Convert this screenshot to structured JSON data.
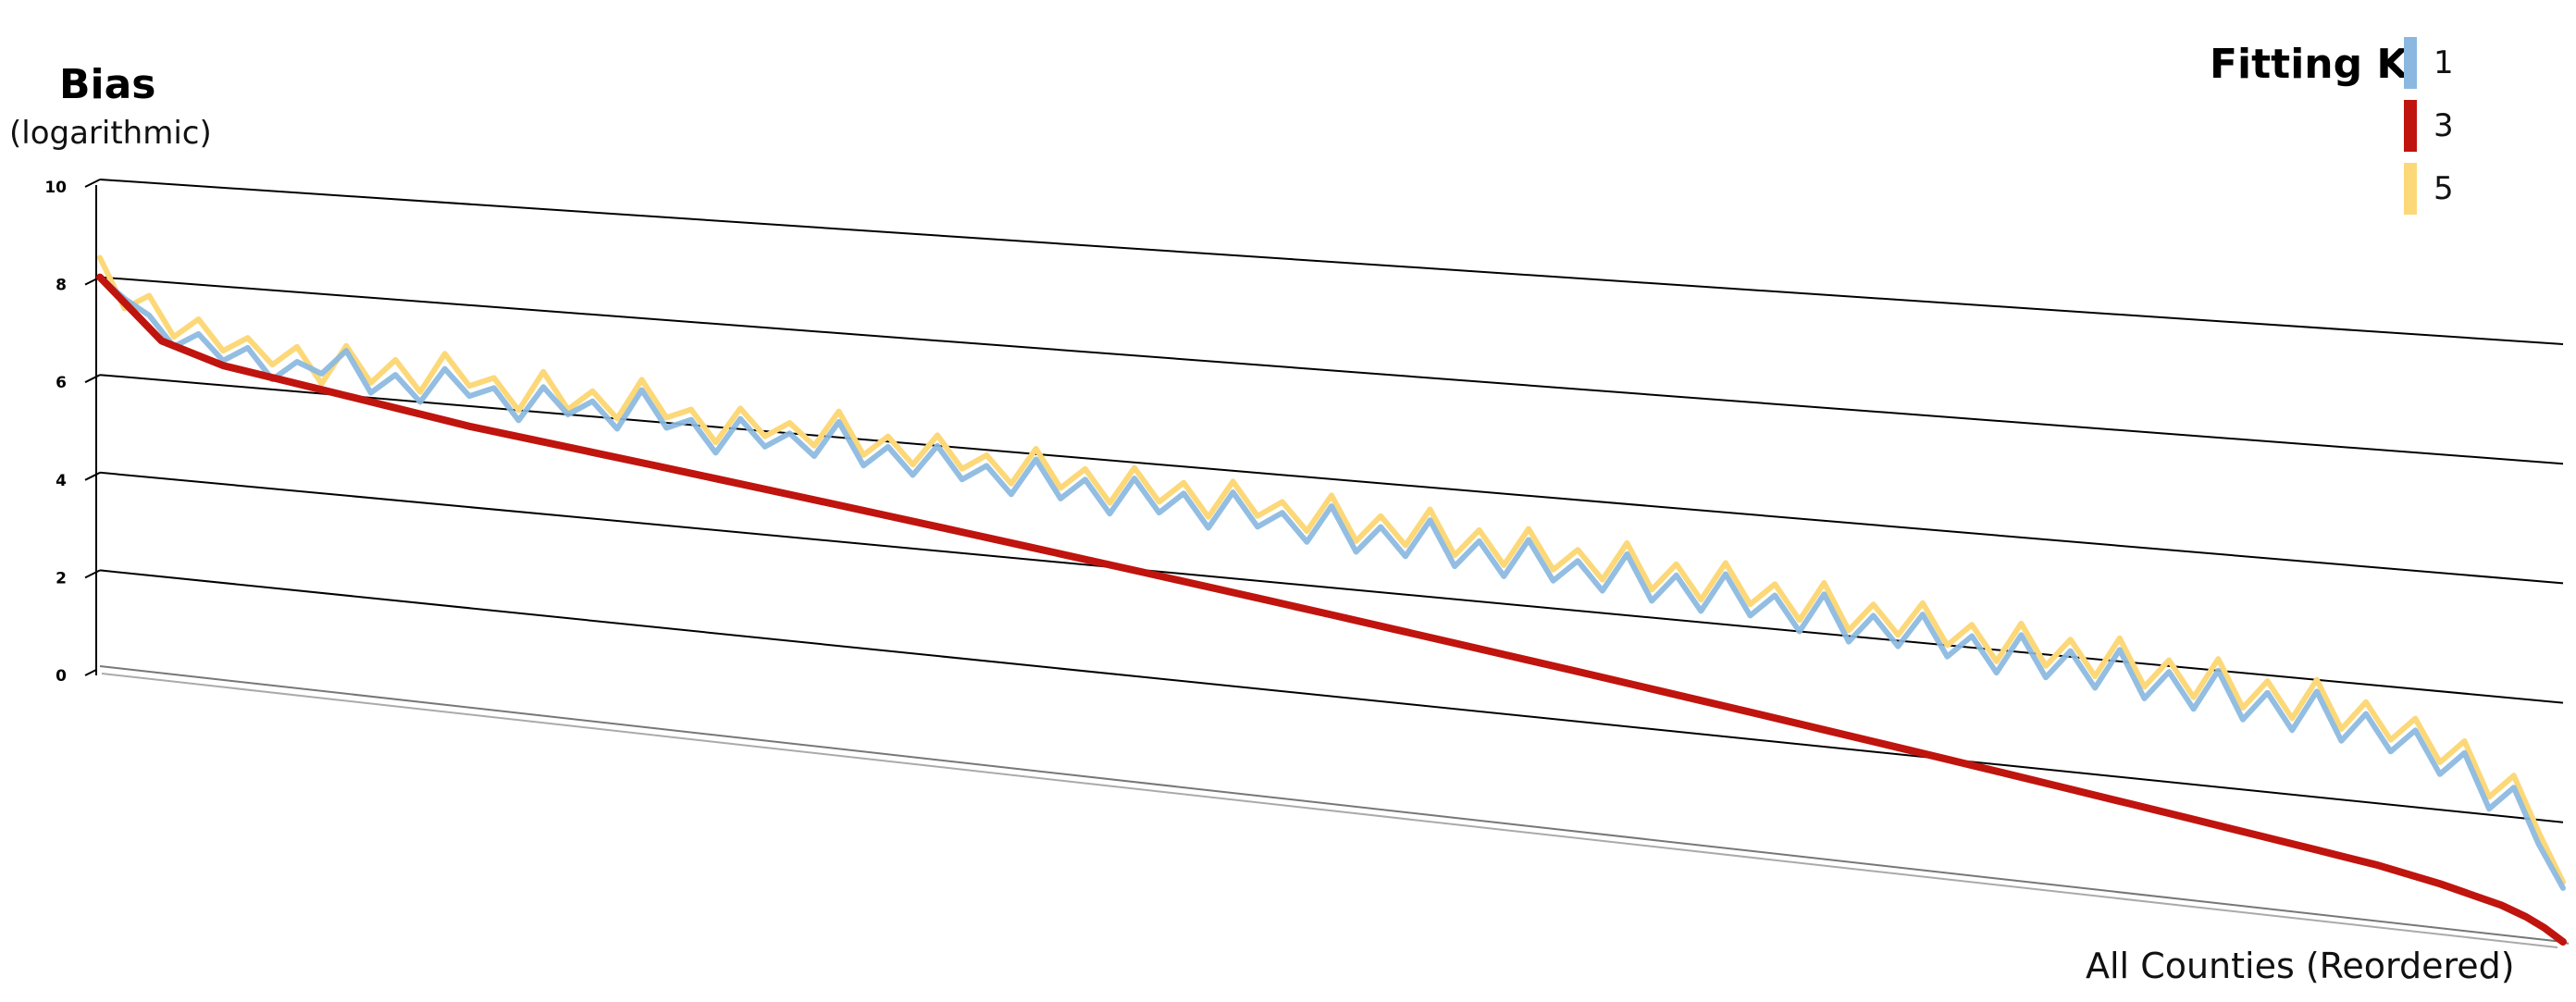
{
  "chart_data": {
    "type": "line",
    "title": "",
    "ylabel": "Bias",
    "ylabel_sub": "(logarithmic)",
    "xlabel": "All Counties (Reordered)",
    "y_ticks": [
      "0",
      "2",
      "4",
      "6",
      "8",
      "10"
    ],
    "ylim": [
      0,
      10
    ],
    "grid": true,
    "legend": {
      "title": "Fitting K",
      "placement": "top-right",
      "items": [
        {
          "label": "1",
          "color": "#8ab8e0"
        },
        {
          "label": "3",
          "color": "#c0140e"
        },
        {
          "label": "5",
          "color": "#fcd879"
        }
      ]
    },
    "series": [
      {
        "name": "1",
        "color": "#8ab8e0",
        "x": [
          0,
          20,
          40,
          60,
          80,
          100,
          120,
          140,
          160,
          180,
          200,
          220,
          240,
          260,
          280,
          300,
          320,
          340,
          360,
          380,
          400,
          420,
          440,
          460,
          480,
          500,
          520,
          540,
          560,
          580,
          600,
          620,
          640,
          660,
          680,
          700,
          720,
          740,
          760,
          780,
          800,
          820,
          840,
          860,
          880,
          900,
          920,
          940,
          960,
          980,
          1000,
          1020,
          1040,
          1060,
          1080,
          1100,
          1120,
          1140,
          1160,
          1180,
          1200,
          1220,
          1240,
          1260,
          1280,
          1300,
          1320,
          1340,
          1360,
          1380,
          1400,
          1420,
          1440,
          1460,
          1480,
          1500,
          1520,
          1540,
          1560,
          1580,
          1600,
          1620,
          1640,
          1660,
          1680,
          1700,
          1720,
          1740,
          1760,
          1780,
          1800,
          1820,
          1840,
          1860,
          1880,
          1900,
          1920,
          1940,
          1960,
          1980,
          2000
        ],
        "y": [
          8.0,
          7.6,
          7.3,
          6.7,
          7.0,
          6.5,
          6.8,
          6.2,
          6.6,
          6.4,
          6.9,
          6.1,
          6.5,
          6.0,
          6.7,
          6.2,
          6.4,
          5.8,
          6.5,
          6.0,
          6.3,
          5.8,
          6.6,
          5.9,
          6.1,
          5.5,
          6.2,
          5.7,
          6.0,
          5.6,
          6.3,
          5.5,
          5.9,
          5.4,
          6.0,
          5.4,
          5.7,
          5.2,
          5.9,
          5.2,
          5.6,
          5.0,
          5.7,
          5.1,
          5.5,
          4.9,
          5.6,
          5.0,
          5.3,
          4.8,
          5.5,
          4.7,
          5.2,
          4.7,
          5.4,
          4.6,
          5.1,
          4.5,
          5.2,
          4.5,
          4.9,
          4.4,
          5.1,
          4.3,
          4.8,
          4.2,
          4.9,
          4.2,
          4.6,
          4.0,
          4.7,
          3.9,
          4.4,
          3.9,
          4.5,
          3.8,
          4.2,
          3.6,
          4.3,
          3.6,
          4.1,
          3.5,
          4.2,
          3.4,
          3.9,
          3.3,
          4.0,
          3.2,
          3.7,
          3.1,
          3.8,
          3.0,
          3.5,
          2.9,
          3.3,
          2.6,
          3.0,
          2.1,
          2.5,
          1.6,
          0.9
        ]
      },
      {
        "name": "3",
        "color": "#c0140e",
        "x": [
          0,
          50,
          100,
          150,
          200,
          250,
          300,
          350,
          400,
          450,
          500,
          550,
          600,
          650,
          700,
          750,
          800,
          850,
          900,
          950,
          1000,
          1050,
          1100,
          1150,
          1200,
          1250,
          1300,
          1350,
          1400,
          1450,
          1500,
          1550,
          1600,
          1650,
          1700,
          1750,
          1800,
          1850,
          1900,
          1930,
          1950,
          1970,
          1985,
          2000
        ],
        "y": [
          8.0,
          6.8,
          6.4,
          6.2,
          6.0,
          5.8,
          5.6,
          5.45,
          5.3,
          5.15,
          5.0,
          4.85,
          4.7,
          4.55,
          4.4,
          4.25,
          4.1,
          3.95,
          3.8,
          3.65,
          3.5,
          3.35,
          3.2,
          3.05,
          2.9,
          2.75,
          2.6,
          2.45,
          2.3,
          2.15,
          2.0,
          1.85,
          1.7,
          1.55,
          1.4,
          1.25,
          1.1,
          0.95,
          0.75,
          0.6,
          0.5,
          0.35,
          0.2,
          0.0
        ]
      },
      {
        "name": "5",
        "color": "#fcd879",
        "x": [
          0,
          20,
          40,
          60,
          80,
          100,
          120,
          140,
          160,
          180,
          200,
          220,
          240,
          260,
          280,
          300,
          320,
          340,
          360,
          380,
          400,
          420,
          440,
          460,
          480,
          500,
          520,
          540,
          560,
          580,
          600,
          620,
          640,
          660,
          680,
          700,
          720,
          740,
          760,
          780,
          800,
          820,
          840,
          860,
          880,
          900,
          920,
          940,
          960,
          980,
          1000,
          1020,
          1040,
          1060,
          1080,
          1100,
          1120,
          1140,
          1160,
          1180,
          1200,
          1220,
          1240,
          1260,
          1280,
          1300,
          1320,
          1340,
          1360,
          1380,
          1400,
          1420,
          1440,
          1460,
          1480,
          1500,
          1520,
          1540,
          1560,
          1580,
          1600,
          1620,
          1640,
          1660,
          1680,
          1700,
          1720,
          1740,
          1760,
          1780,
          1800,
          1820,
          1840,
          1860,
          1880,
          1900,
          1920,
          1940,
          1960,
          1980,
          2000
        ],
        "y": [
          8.4,
          7.4,
          7.7,
          6.9,
          7.3,
          6.7,
          7.0,
          6.5,
          6.9,
          6.2,
          7.0,
          6.3,
          6.8,
          6.2,
          7.0,
          6.4,
          6.6,
          6.0,
          6.8,
          6.1,
          6.5,
          6.0,
          6.8,
          6.1,
          6.3,
          5.7,
          6.4,
          5.9,
          6.2,
          5.8,
          6.5,
          5.7,
          6.1,
          5.6,
          6.2,
          5.6,
          5.9,
          5.4,
          6.1,
          5.4,
          5.8,
          5.2,
          5.9,
          5.3,
          5.7,
          5.1,
          5.8,
          5.2,
          5.5,
          5.0,
          5.7,
          4.9,
          5.4,
          4.9,
          5.6,
          4.8,
          5.3,
          4.7,
          5.4,
          4.7,
          5.1,
          4.6,
          5.3,
          4.5,
          5.0,
          4.4,
          5.1,
          4.4,
          4.8,
          4.2,
          4.9,
          4.1,
          4.6,
          4.1,
          4.7,
          4.0,
          4.4,
          3.8,
          4.5,
          3.8,
          4.3,
          3.7,
          4.4,
          3.6,
          4.1,
          3.5,
          4.2,
          3.4,
          3.9,
          3.3,
          4.0,
          3.2,
          3.7,
          3.1,
          3.5,
          2.8,
          3.2,
          2.3,
          2.7,
          1.8,
          1.0
        ]
      }
    ]
  }
}
